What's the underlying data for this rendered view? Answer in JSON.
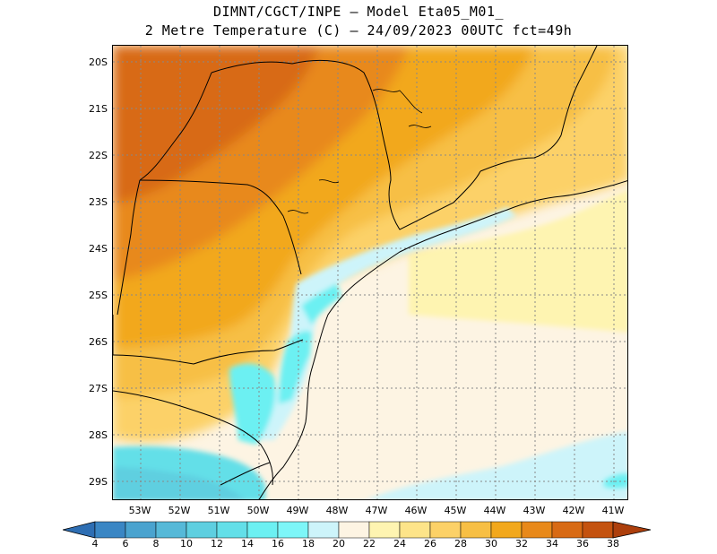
{
  "title": {
    "line1": "DIMNT/CGCT/INPE –  Model Eta05_M01_",
    "line2": "2 Metre Temperature (C) –  24/09/2023 00UTC fct=49h"
  },
  "axes": {
    "lat_labels": [
      "20S",
      "21S",
      "22S",
      "23S",
      "24S",
      "25S",
      "26S",
      "27S",
      "28S",
      "29S"
    ],
    "lon_labels": [
      "53W",
      "52W",
      "51W",
      "50W",
      "49W",
      "48W",
      "47W",
      "46W",
      "45W",
      "44W",
      "43W",
      "42W",
      "41W"
    ]
  },
  "colorbar": {
    "labels": [
      "4",
      "6",
      "8",
      "10",
      "12",
      "14",
      "16",
      "18",
      "20",
      "22",
      "24",
      "26",
      "28",
      "30",
      "32",
      "34",
      "36",
      "38"
    ],
    "colors": [
      "#2e6eb3",
      "#3a86c4",
      "#4aa3cf",
      "#56b9d8",
      "#5ecfe0",
      "#63dfe8",
      "#6cf0f2",
      "#cdf4fa",
      "#fdf4e3",
      "#fef4b1",
      "#fde489",
      "#fcd167",
      "#f7bf44",
      "#f2a81c",
      "#e8891a",
      "#d86a14",
      "#c4520f",
      "#ad3f0c"
    ]
  }
}
